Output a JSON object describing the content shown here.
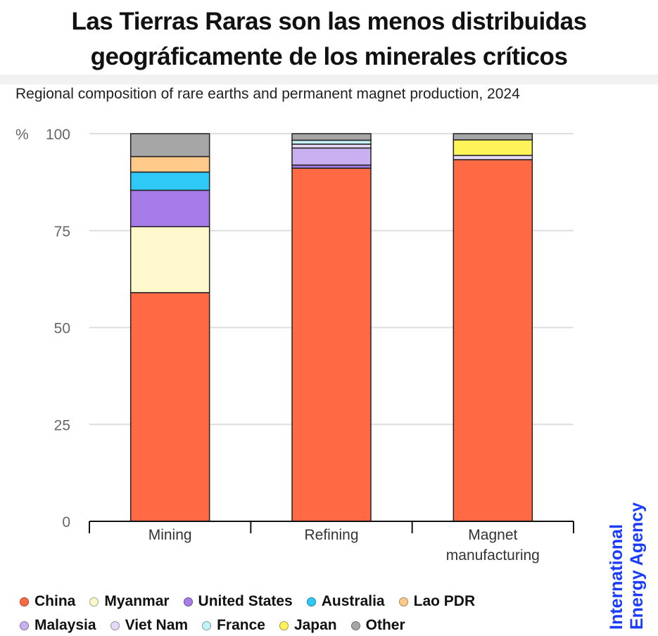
{
  "title_line1": "Las Tierras Raras son las menos distribuidas",
  "title_line2": "geográficamente de los minerales críticos",
  "logo": {
    "line1": "International",
    "line2": "Energy Agency"
  },
  "chart_data": {
    "type": "bar",
    "stacked": true,
    "title": "Regional composition of rare earths and permanent magnet production, 2024",
    "ylabel": "%",
    "ylim": [
      0,
      100
    ],
    "yticks": [
      "0",
      "25",
      "50",
      "75",
      "100"
    ],
    "categories": [
      "Mining",
      "Refining",
      "Magnet manufacturing"
    ],
    "series": [
      {
        "name": "China",
        "color": "#ff6a45",
        "values": [
          59,
          91.1,
          93.3
        ]
      },
      {
        "name": "Myanmar",
        "color": "#fff8cc",
        "values": [
          17,
          0,
          0
        ]
      },
      {
        "name": "United States",
        "color": "#a67ce8",
        "values": [
          9.4,
          0.8,
          0
        ]
      },
      {
        "name": "Australia",
        "color": "#2ec9f7",
        "values": [
          4.7,
          0,
          0
        ]
      },
      {
        "name": "Lao PDR",
        "color": "#ffc98a",
        "values": [
          4,
          0,
          0
        ]
      },
      {
        "name": "Malaysia",
        "color": "#c9b0f0",
        "values": [
          0,
          4.4,
          0
        ]
      },
      {
        "name": "Viet Nam",
        "color": "#e6d9fa",
        "values": [
          0,
          1,
          1.1
        ]
      },
      {
        "name": "France",
        "color": "#c4f0f8",
        "values": [
          0,
          1,
          0
        ]
      },
      {
        "name": "Japan",
        "color": "#fff35a",
        "values": [
          0,
          0,
          4
        ]
      },
      {
        "name": "Other",
        "color": "#a6a6a6",
        "values": [
          5.9,
          1.7,
          1.6
        ]
      }
    ],
    "grid": true,
    "legend": "bottom"
  }
}
